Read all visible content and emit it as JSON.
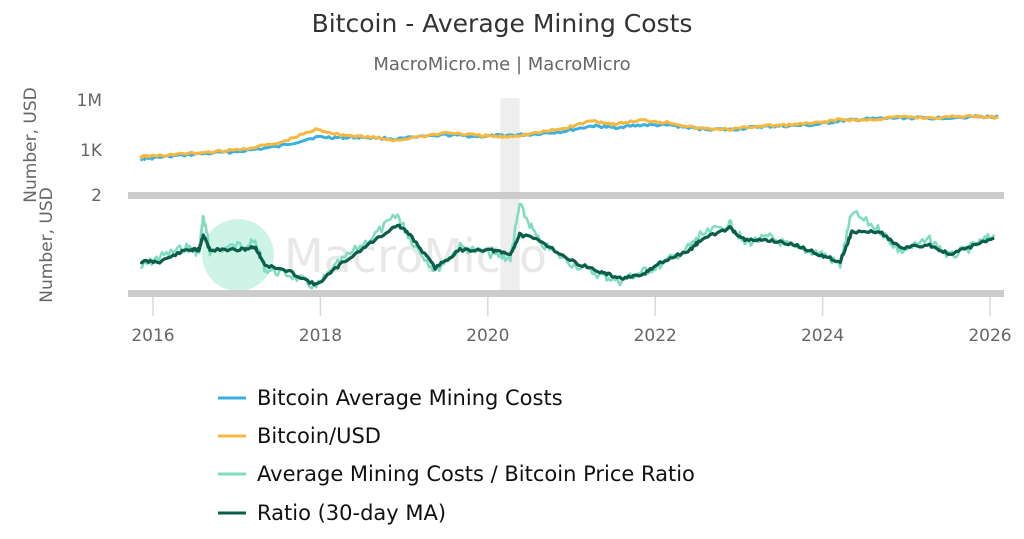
{
  "chart_data": [
    {
      "type": "line",
      "title": "Bitcoin - Average Mining Costs",
      "subtitle": "MacroMicro.me | MacroMicro",
      "ylabel": "Number, USD",
      "yscale": "log",
      "ylim": [
        2,
        1000000
      ],
      "yticks": [
        "1M",
        "1K",
        "2"
      ],
      "ytick_values": [
        1000000,
        1000,
        2
      ],
      "xlim": [
        2015.7,
        2026.2
      ],
      "xticks": [
        "2016",
        "2018",
        "2020",
        "2022",
        "2024",
        "2026"
      ],
      "xtick_values": [
        2016,
        2018,
        2020,
        2022,
        2024,
        2026
      ],
      "shaded_period": [
        2020.15,
        2020.38
      ],
      "x": [
        2015.85,
        2016.0,
        2016.5,
        2017.0,
        2017.5,
        2017.95,
        2018.25,
        2018.5,
        2018.9,
        2019.5,
        2019.9,
        2020.2,
        2020.5,
        2020.9,
        2021.25,
        2021.5,
        2021.85,
        2022.2,
        2022.5,
        2022.9,
        2023.25,
        2023.5,
        2023.9,
        2024.2,
        2024.5,
        2024.9,
        2025.3,
        2025.8,
        2026.1
      ],
      "series": [
        {
          "name": "Bitcoin Average Mining Costs",
          "color": "#3cb0e0",
          "values": [
            300,
            330,
            560,
            800,
            1600,
            6000,
            5500,
            6000,
            4500,
            8000,
            6500,
            7500,
            8500,
            13000,
            28000,
            22000,
            32000,
            30000,
            19000,
            16500,
            25000,
            27000,
            32000,
            55000,
            70000,
            85000,
            82000,
            100000,
            95000
          ]
        },
        {
          "name": "Bitcoin/USD",
          "color": "#f5b942",
          "values": [
            400,
            430,
            650,
            1000,
            2500,
            17000,
            8000,
            6500,
            3800,
            11000,
            7300,
            6000,
            9200,
            19000,
            58000,
            35000,
            62000,
            42000,
            20000,
            16800,
            28000,
            30000,
            40000,
            67000,
            60000,
            95000,
            85000,
            110000,
            90000
          ]
        }
      ],
      "legend_position": "bottom"
    },
    {
      "type": "line",
      "ylabel": "Number, USD",
      "ylim": [
        0.3,
        1.6
      ],
      "x": [
        2015.85,
        2016.08,
        2016.4,
        2016.55,
        2016.6,
        2016.68,
        2017.04,
        2017.22,
        2017.34,
        2017.64,
        2017.95,
        2018.23,
        2018.6,
        2018.92,
        2019.07,
        2019.37,
        2019.67,
        2020.03,
        2020.27,
        2020.38,
        2020.62,
        2020.98,
        2021.34,
        2021.58,
        2021.82,
        2022.06,
        2022.42,
        2022.54,
        2022.89,
        2023.07,
        2023.37,
        2023.67,
        2023.97,
        2024.21,
        2024.35,
        2024.69,
        2024.92,
        2025.28,
        2025.52,
        2025.82,
        2026.05
      ],
      "series": [
        {
          "name": "Average Mining Costs / Bitcoin Price Ratio",
          "color": "#7fdcc0",
          "values": [
            0.62,
            0.78,
            0.92,
            0.84,
            1.38,
            0.86,
            0.95,
            0.98,
            0.6,
            0.52,
            0.34,
            0.7,
            1.05,
            1.38,
            1.05,
            0.58,
            0.92,
            0.82,
            0.76,
            1.52,
            0.98,
            0.7,
            0.52,
            0.43,
            0.55,
            0.66,
            0.93,
            1.08,
            1.26,
            0.98,
            1.06,
            0.9,
            0.84,
            0.66,
            1.42,
            1.16,
            0.86,
            1.02,
            0.78,
            0.94,
            1.1
          ]
        },
        {
          "name": "Ratio (30-day MA)",
          "color": "#0a5e4a",
          "values": [
            0.71,
            0.71,
            0.88,
            0.88,
            1.1,
            0.88,
            0.88,
            0.92,
            0.66,
            0.56,
            0.37,
            0.66,
            0.98,
            1.24,
            1.1,
            0.62,
            0.88,
            0.88,
            0.81,
            1.1,
            1.02,
            0.73,
            0.56,
            0.47,
            0.5,
            0.69,
            0.88,
            1.02,
            1.2,
            1.02,
            1.02,
            0.95,
            0.81,
            0.71,
            1.14,
            1.14,
            0.91,
            0.95,
            0.81,
            0.95,
            1.05
          ]
        }
      ]
    }
  ],
  "watermark": "MacroMicro"
}
